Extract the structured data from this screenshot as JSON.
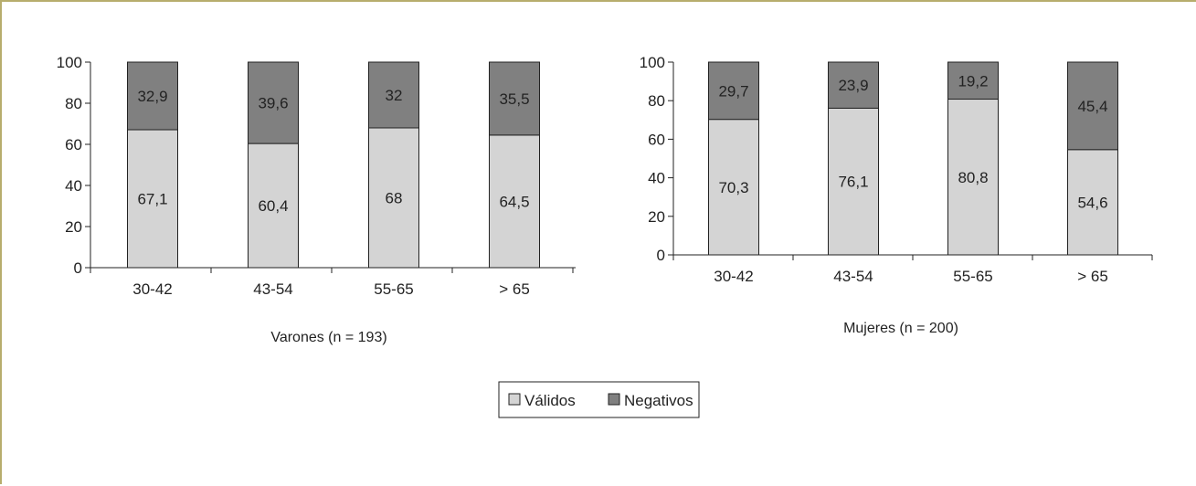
{
  "colors": {
    "valid": "#d4d4d4",
    "negative": "#808080",
    "border": "#b7ad6d",
    "axis": "#222222"
  },
  "legend": {
    "items": [
      {
        "label": "Válidos",
        "color": "#d4d4d4"
      },
      {
        "label": "Negativos",
        "color": "#808080"
      }
    ]
  },
  "chart_data": [
    {
      "type": "bar",
      "stacked": true,
      "title": "",
      "caption": "Varones (n = 193)",
      "categories": [
        "30-42",
        "43-54",
        "55-65",
        "> 65"
      ],
      "ylim": [
        0,
        100
      ],
      "yticks": [
        0,
        20,
        40,
        60,
        80,
        100
      ],
      "series": [
        {
          "name": "Válidos",
          "values": [
            67.1,
            60.4,
            68,
            64.5
          ],
          "labels": [
            "67,1",
            "60,4",
            "68",
            "64,5"
          ]
        },
        {
          "name": "Negativos",
          "values": [
            32.9,
            39.6,
            32,
            35.5
          ],
          "labels": [
            "32,9",
            "39,6",
            "32",
            "35,5"
          ]
        }
      ]
    },
    {
      "type": "bar",
      "stacked": true,
      "title": "",
      "caption": "Mujeres (n = 200)",
      "categories": [
        "30-42",
        "43-54",
        "55-65",
        "> 65"
      ],
      "ylim": [
        0,
        100
      ],
      "yticks": [
        0,
        20,
        40,
        60,
        80,
        100
      ],
      "series": [
        {
          "name": "Válidos",
          "values": [
            70.3,
            76.1,
            80.8,
            54.6
          ],
          "labels": [
            "70,3",
            "76,1",
            "80,8",
            "54,6"
          ]
        },
        {
          "name": "Negativos",
          "values": [
            29.7,
            23.9,
            19.2,
            45.4
          ],
          "labels": [
            "29,7",
            "23,9",
            "19,2",
            "45,4"
          ]
        }
      ]
    }
  ]
}
